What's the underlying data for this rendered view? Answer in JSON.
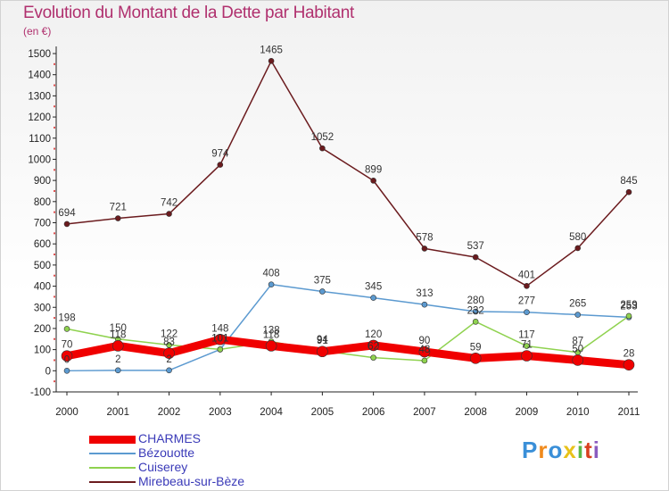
{
  "title": "Evolution du Montant de la Dette par Habitant",
  "subtitle": "(en €)",
  "chart_data": {
    "type": "line",
    "x": [
      "2000",
      "2001",
      "2002",
      "2003",
      "2004",
      "2005",
      "2006",
      "2007",
      "2008",
      "2009",
      "2010",
      "2011"
    ],
    "ylim": [
      -100,
      1500
    ],
    "yticks": [
      -100,
      0,
      100,
      200,
      300,
      400,
      500,
      600,
      700,
      800,
      900,
      1000,
      1100,
      1200,
      1300,
      1400,
      1500
    ],
    "grid": false,
    "legend_position": "bottom-left",
    "series": [
      {
        "name": "Mirebeau-sur-Bèze",
        "color": "#6b1b1e",
        "values": [
          694,
          721,
          742,
          974,
          1465,
          1052,
          899,
          578,
          537,
          401,
          580,
          845
        ],
        "labels": [
          "694",
          "721",
          "742",
          "974",
          "1465",
          "1052",
          "899",
          "578",
          "537",
          "401",
          "580",
          "845"
        ]
      },
      {
        "name": "Bézouotte",
        "color": "#5c9ad0",
        "values": [
          0,
          2,
          2,
          101,
          408,
          375,
          345,
          313,
          280,
          277,
          265,
          253
        ],
        "labels": [
          "0",
          "2",
          "2",
          "101",
          "408",
          "375",
          "345",
          "313",
          "280",
          "277",
          "265",
          "253"
        ]
      },
      {
        "name": "Cuiserey",
        "color": "#8fd24f",
        "values": [
          198,
          150,
          122,
          101,
          138,
          94,
          62,
          48,
          232,
          117,
          87,
          259
        ],
        "labels": [
          "198",
          "150",
          "122",
          "101",
          "138",
          "94",
          "62",
          "48",
          "232",
          "117",
          "87",
          "259"
        ]
      },
      {
        "name": "CHARMES",
        "color": "#f00000",
        "values": [
          70,
          118,
          83,
          148,
          118,
          91,
          120,
          90,
          59,
          71,
          50,
          28
        ],
        "labels": [
          "70",
          "118",
          "83",
          "148",
          "118",
          "91",
          "120",
          "90",
          "59",
          "71",
          "50",
          "28"
        ]
      }
    ]
  },
  "legend": [
    {
      "name": "CHARMES",
      "color": "#f00000"
    },
    {
      "name": "Bézouotte",
      "color": "#5c9ad0"
    },
    {
      "name": "Cuiserey",
      "color": "#8fd24f"
    },
    {
      "name": "Mirebeau-sur-Bèze",
      "color": "#6b1b1e"
    }
  ],
  "logo": {
    "text": "Proxiti",
    "letters": [
      "P",
      "r",
      "o",
      "x",
      "i",
      "t",
      "i"
    ],
    "colors": [
      "#3a8fd8",
      "#f08a1c",
      "#3a8fd8",
      "#e8c21a",
      "#5bb847",
      "#d9401f",
      "#8a5bbf"
    ]
  }
}
